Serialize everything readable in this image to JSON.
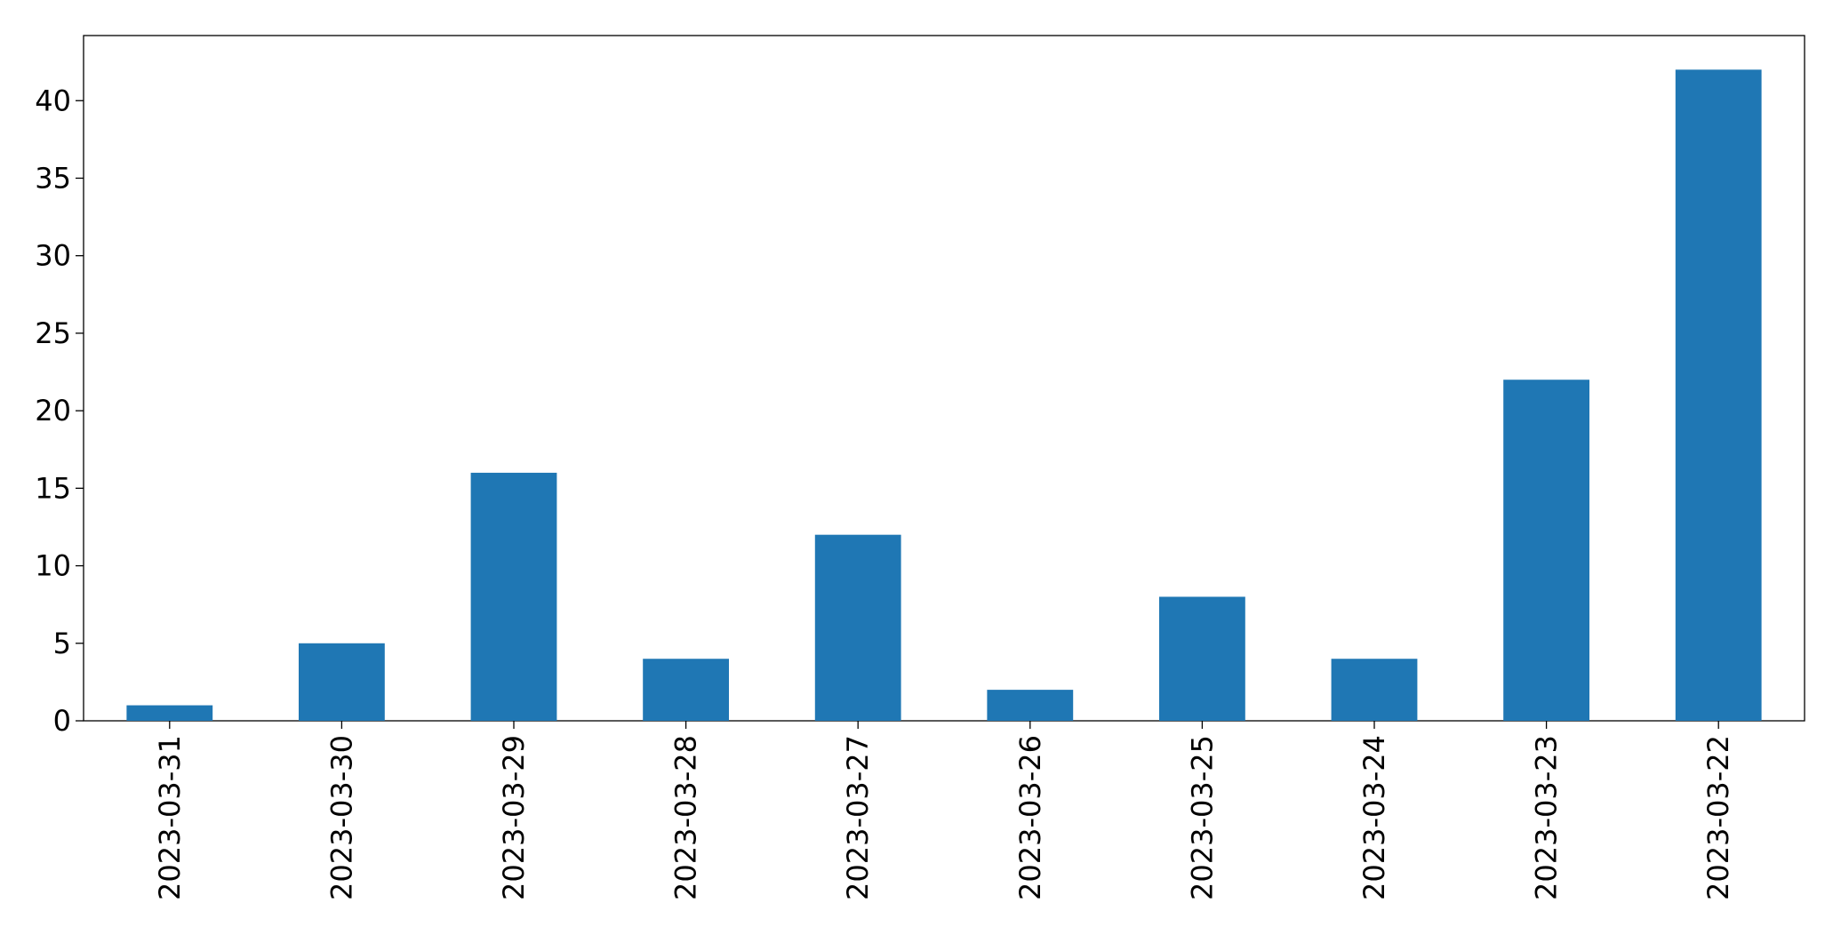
{
  "chart_data": {
    "type": "bar",
    "categories": [
      "2023-03-31",
      "2023-03-30",
      "2023-03-29",
      "2023-03-28",
      "2023-03-27",
      "2023-03-26",
      "2023-03-25",
      "2023-03-24",
      "2023-03-23",
      "2023-03-22"
    ],
    "values": [
      1,
      5,
      16,
      4,
      12,
      2,
      8,
      4,
      22,
      42
    ],
    "color": "#1f77b4",
    "ylim": [
      0,
      44.2
    ],
    "yticks": [
      0,
      5,
      10,
      15,
      20,
      25,
      30,
      35,
      40
    ],
    "grid": false
  }
}
